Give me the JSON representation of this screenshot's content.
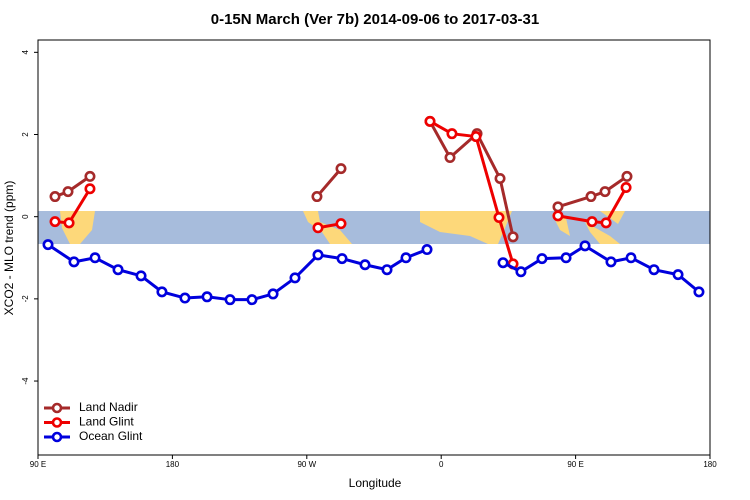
{
  "chart_data": {
    "type": "line",
    "title": "0-15N March (Ver 7b)   2014-09-06 to 2017-03-31",
    "x_label": "Longitude",
    "y_label": "XCO2 - MLO trend (ppm)",
    "xlim": [
      90,
      540
    ],
    "ylim": [
      -5.8,
      4.3
    ],
    "xticks": [
      {
        "value": 90,
        "label": "90 E"
      },
      180,
      {
        "value": 270,
        "label": "90 W"
      },
      {
        "value": 360,
        "label": "0"
      },
      {
        "value": 450,
        "label": "90 E"
      },
      {
        "value": 540,
        "label": "180"
      }
    ],
    "yticks": [
      -4,
      -2,
      0,
      2,
      4
    ],
    "legend": "bottom-left",
    "series": [
      {
        "name": "Land Nadir",
        "color": "#a52a2a",
        "x": [
          101.4,
          110.1,
          124.8,
          null,
          276.8,
          292.9,
          null,
          352.5,
          365.9,
          384,
          399.4,
          408.1,
          null,
          438.2,
          460.3,
          469.7,
          484.4
        ],
        "values": [
          0.49,
          0.61,
          0.98,
          null,
          0.49,
          1.17,
          null,
          2.32,
          1.44,
          2.02,
          0.93,
          -0.49,
          null,
          0.24,
          0.49,
          0.61,
          0.98
        ]
      },
      {
        "name": "Land Glint",
        "color": "#ee0000",
        "x": [
          101.4,
          110.8,
          124.8,
          null,
          277.5,
          292.9,
          null,
          352.5,
          367.2,
          383.3,
          398.7,
          408.1,
          null,
          438.2,
          461,
          470.4,
          483.8
        ],
        "values": [
          -0.12,
          -0.15,
          0.68,
          null,
          -0.27,
          -0.17,
          null,
          2.32,
          2.02,
          1.95,
          -0.02,
          -1.15,
          null,
          0.02,
          -0.12,
          -0.15,
          0.71
        ]
      },
      {
        "name": "Ocean Glint",
        "color": "#0000dd",
        "x": [
          96.7,
          114.1,
          128.2,
          143.6,
          159,
          173,
          188.4,
          203.2,
          218.6,
          233.3,
          247.4,
          262.1,
          277.5,
          293.6,
          309,
          323.7,
          336.4,
          350.5,
          null,
          401.4,
          413.4,
          427.5,
          443.6,
          456.3,
          473.7,
          487.1,
          502.5,
          518.6,
          532.6
        ],
        "values": [
          -0.68,
          -1.1,
          -1.0,
          -1.29,
          -1.44,
          -1.83,
          -1.98,
          -1.95,
          -2.02,
          -2.02,
          -1.88,
          -1.49,
          -0.93,
          -1.02,
          -1.17,
          -1.29,
          -1.0,
          -0.8,
          null,
          -1.12,
          -1.34,
          -1.02,
          -1.0,
          -0.71,
          -1.1,
          -1.0,
          -1.29,
          -1.41,
          -1.83
        ]
      }
    ]
  }
}
